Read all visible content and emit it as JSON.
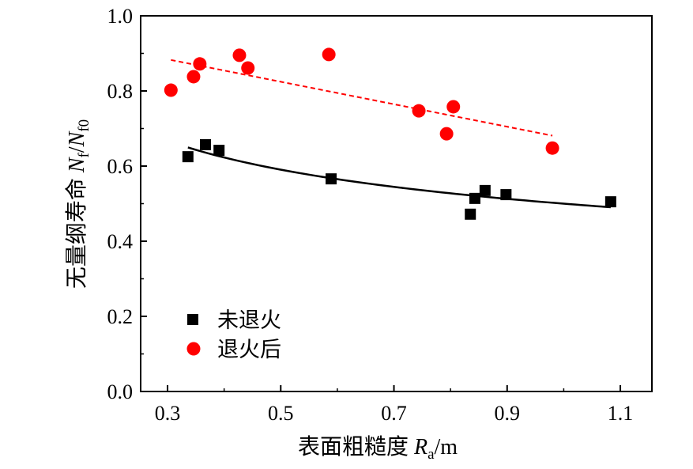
{
  "chart_data": {
    "type": "scatter",
    "title": "",
    "xlabel": {
      "prefix": "表面粗糙度 ",
      "var": "R",
      "sub": "a",
      "suffix": "/m"
    },
    "ylabel": {
      "prefix": "无量纲寿命 ",
      "var1": "N",
      "sub1": "f",
      "mid": "/",
      "var2": "N",
      "sub2": "f0"
    },
    "xlim": [
      0.2525,
      1.1558
    ],
    "ylim": [
      0.0,
      1.0
    ],
    "xticks": [
      0.3,
      0.5,
      0.7,
      0.9,
      1.1
    ],
    "xtick_labels": [
      "0.3",
      "0.5",
      "0.7",
      "0.9",
      "1.1"
    ],
    "xminor": [
      0.4,
      0.6,
      0.8,
      1.0
    ],
    "yticks": [
      0.0,
      0.2,
      0.4,
      0.6,
      0.8,
      1.0
    ],
    "ytick_labels": [
      "0.0",
      "0.2",
      "0.4",
      "0.6",
      "0.8",
      "1.0"
    ],
    "yminor": [
      0.1,
      0.3,
      0.5,
      0.7,
      0.9
    ],
    "series": [
      {
        "name": "未退火",
        "marker": "square",
        "color": "#000000",
        "x": [
          0.336,
          0.367,
          0.391,
          0.589,
          0.835,
          0.843,
          0.861,
          0.898,
          1.083
        ],
        "y": [
          0.625,
          0.657,
          0.642,
          0.566,
          0.472,
          0.514,
          0.535,
          0.524,
          0.505
        ],
        "fit": {
          "type": "power",
          "line": "solid",
          "a": 0.5,
          "b": -0.24,
          "x_range": [
            0.336,
            1.083
          ]
        }
      },
      {
        "name": "退火后",
        "marker": "circle",
        "color": "#ff0000",
        "x": [
          0.306,
          0.346,
          0.357,
          0.427,
          0.442,
          0.585,
          0.744,
          0.793,
          0.805,
          0.98
        ],
        "y": [
          0.802,
          0.838,
          0.872,
          0.895,
          0.861,
          0.897,
          0.747,
          0.686,
          0.758,
          0.648
        ],
        "fit": {
          "type": "linear",
          "line": "dashed",
          "intercept": 0.974,
          "slope": -0.299,
          "x_range": [
            0.306,
            0.98
          ]
        }
      }
    ]
  }
}
